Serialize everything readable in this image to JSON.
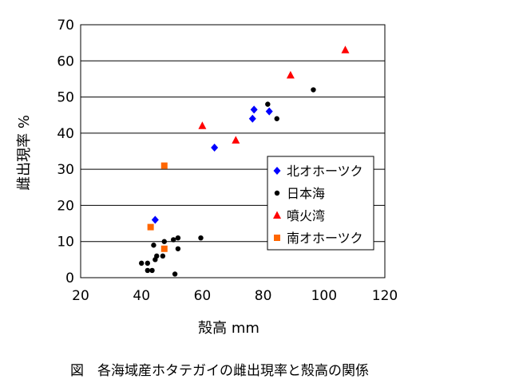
{
  "caption": "図　各海域産ホタテガイの雌出現率と殻高の関係",
  "chart_data": {
    "type": "scatter",
    "title": "",
    "xlabel": "殻高 mm",
    "ylabel": "雌出現率 %",
    "xlim": [
      20,
      120
    ],
    "ylim": [
      0,
      70
    ],
    "xticks": [
      "20",
      "40",
      "60",
      "80",
      "100",
      "120"
    ],
    "yticks": [
      "0",
      "10",
      "20",
      "30",
      "40",
      "50",
      "60",
      "70"
    ],
    "grid": "horizontal",
    "legend_position": "right-middle",
    "series": [
      {
        "name": "北オホーツク",
        "marker": "diamond",
        "color": "#0000ff",
        "points": [
          [
            44.5,
            16
          ],
          [
            64,
            36
          ],
          [
            76.5,
            44
          ],
          [
            77,
            46.5
          ],
          [
            82,
            46
          ]
        ]
      },
      {
        "name": "日本海",
        "marker": "circle",
        "color": "#000000",
        "points": [
          [
            40,
            4
          ],
          [
            42,
            4
          ],
          [
            42,
            2
          ],
          [
            43.5,
            2
          ],
          [
            44,
            9
          ],
          [
            44.5,
            5
          ],
          [
            45,
            6
          ],
          [
            47,
            6
          ],
          [
            47.5,
            10
          ],
          [
            50.5,
            10.5
          ],
          [
            51,
            1
          ],
          [
            52,
            11
          ],
          [
            52,
            8
          ],
          [
            59.5,
            11
          ],
          [
            81.5,
            48
          ],
          [
            84.5,
            44
          ],
          [
            96.5,
            52
          ]
        ]
      },
      {
        "name": "噴火湾",
        "marker": "triangle",
        "color": "#ff0000",
        "points": [
          [
            60,
            42
          ],
          [
            71,
            38
          ],
          [
            89,
            56
          ],
          [
            107,
            63
          ]
        ]
      },
      {
        "name": "南オホーツク",
        "marker": "square",
        "color": "#ff6600",
        "points": [
          [
            43,
            14
          ],
          [
            47.5,
            31
          ],
          [
            47.5,
            8
          ]
        ]
      }
    ]
  }
}
